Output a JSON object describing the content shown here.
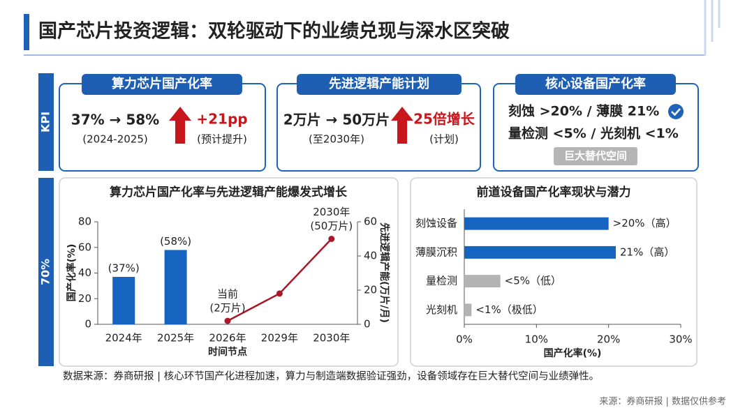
{
  "header": {
    "title": "国产芯片投资逻辑：双轮驱动下的业绩兑现与深水区突破"
  },
  "side_labels": [
    "KPI",
    "70%"
  ],
  "kpis": [
    {
      "title": "算力芯片国产化率",
      "main": "37% → 58%",
      "sub": "(2024-2025)",
      "change": "+21pp",
      "change_note": "(预计提升)"
    },
    {
      "title": "先进逻辑产能计划",
      "main": "2万片 → 50万片",
      "sub": "(至2030年)",
      "change": "25倍增长",
      "change_note": "(计划)"
    },
    {
      "title": "核心设备国产化率",
      "lines": [
        "刻蚀 >20% / 薄膜 21%",
        "量检测 <5% / 光刻机 <1%"
      ],
      "tag": "巨大替代空间"
    }
  ],
  "chart_data": [
    {
      "type": "bar_line",
      "title": "算力芯片国产化率与先进逻辑产能爆发式增长",
      "categories": [
        "2024年",
        "2025年",
        "2026年",
        "2029年",
        "2030年"
      ],
      "xlabel": "时间节点",
      "ylabel": "国产化率(%)",
      "y2label": "先进逻辑产能(万片/月)",
      "ylim": [
        0,
        80
      ],
      "yticks": [
        0,
        20,
        40,
        60,
        80
      ],
      "y2lim": [
        0,
        60
      ],
      "y2ticks": [
        0,
        20,
        40,
        60
      ],
      "series": [
        {
          "type": "bar",
          "color": "#1565c0",
          "values": [
            37,
            58,
            null,
            null,
            null
          ],
          "value_labels": [
            "(37%)",
            "(58%)",
            null,
            null,
            null
          ]
        },
        {
          "type": "line",
          "axis": "y2",
          "color": "#a8182a",
          "values": [
            null,
            null,
            2,
            18,
            50
          ]
        }
      ],
      "annotations": [
        [
          "当前",
          "(2万片)"
        ],
        [
          "2030年",
          "(50万片)"
        ]
      ]
    },
    {
      "type": "barh",
      "title": "前道设备国产化率现状与潜力",
      "categories": [
        "刻蚀设备",
        "薄膜沉积",
        "量检测",
        "光刻机"
      ],
      "values": [
        20,
        21,
        5,
        1
      ],
      "value_labels": [
        ">20%（高）",
        "21%（高）",
        "<5%（低）",
        "<1%（极低）"
      ],
      "colors": [
        "#1565c0",
        "#1565c0",
        "#b3b3b3",
        "#b3b3b3"
      ],
      "xlim": [
        0,
        30
      ],
      "xticks": [
        {
          "value": 0,
          "label": "0%"
        },
        {
          "value": 10,
          "label": "10%"
        },
        {
          "value": 20,
          "label": "20%"
        },
        {
          "value": 30,
          "label": "30%"
        }
      ],
      "xlabel": "国产化率(%)"
    }
  ],
  "footer": {
    "note": "数据来源：券商研报 | 核心环节国产化进程加速，算力与制造端数据验证强劲，设备领域存在巨大替代空间与业绩弹性。",
    "source": "来源：券商研报 | 数据仅供参考"
  }
}
